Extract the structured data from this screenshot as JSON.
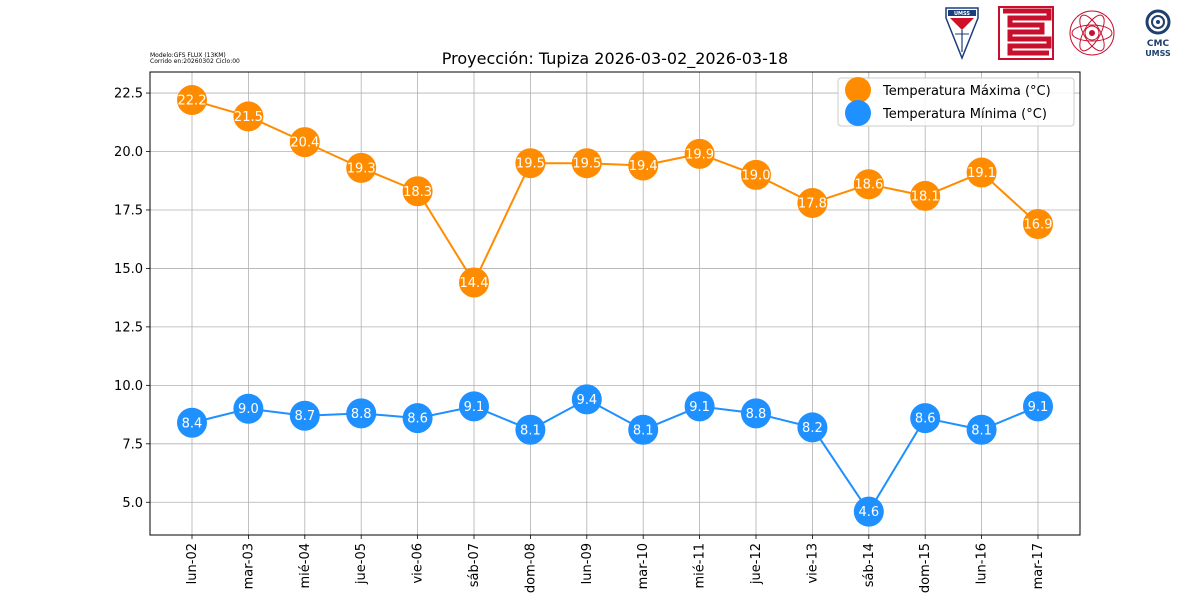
{
  "header": {
    "model_line": "Modelo:GFS FLUX (13KM)",
    "run_line": "Corrido en:20260302 Ciclo:00",
    "logos": [
      "umss-shield-logo",
      "red-labyrinth-logo",
      "atom-seal-logo",
      "cmc-umss-logo"
    ],
    "logo_texts": [
      "UMSS",
      "CMC",
      "UMSS"
    ]
  },
  "chart_data": {
    "type": "line",
    "title": "Proyección: Tupiza 2026-03-02_2026-03-18",
    "xlabel": "",
    "ylabel": "",
    "ylim": [
      3.6,
      23.4
    ],
    "yticks": [
      5.0,
      7.5,
      10.0,
      12.5,
      15.0,
      17.5,
      20.0,
      22.5
    ],
    "ytick_labels": [
      "5.0",
      "7.5",
      "10.0",
      "12.5",
      "15.0",
      "17.5",
      "20.0",
      "22.5"
    ],
    "grid": true,
    "legend_position": "top-right",
    "categories": [
      "lun-02",
      "mar-03",
      "mié-04",
      "jue-05",
      "vie-06",
      "sáb-07",
      "dom-08",
      "lun-09",
      "mar-10",
      "mié-11",
      "jue-12",
      "vie-13",
      "sáb-14",
      "dom-15",
      "lun-16",
      "mar-17"
    ],
    "series": [
      {
        "name": "Temperatura Máxima  (°C)",
        "color": "#ff8c00",
        "values": [
          22.2,
          21.5,
          20.4,
          19.3,
          18.3,
          14.4,
          19.5,
          19.5,
          19.4,
          19.9,
          19.0,
          17.8,
          18.6,
          18.1,
          19.1,
          16.9
        ],
        "labels": [
          "22.2",
          "21.5",
          "20.4",
          "19.3",
          "18.3",
          "14.4",
          "19.5",
          "19.5",
          "19.4",
          "19.9",
          "19.0",
          "17.8",
          "18.6",
          "18.1",
          "19.1",
          "16.9"
        ]
      },
      {
        "name": "Temperatura Mínima  (°C)",
        "color": "#1e90ff",
        "values": [
          8.4,
          9.0,
          8.7,
          8.8,
          8.6,
          9.1,
          8.1,
          9.4,
          8.1,
          9.1,
          8.8,
          8.2,
          4.6,
          8.6,
          8.1,
          9.1
        ],
        "labels": [
          "8.4",
          "9.0",
          "8.7",
          "8.8",
          "8.6",
          "9.1",
          "8.1",
          "9.4",
          "8.1",
          "9.1",
          "8.8",
          "8.2",
          "4.6",
          "8.6",
          "8.1",
          "9.1"
        ]
      }
    ]
  }
}
